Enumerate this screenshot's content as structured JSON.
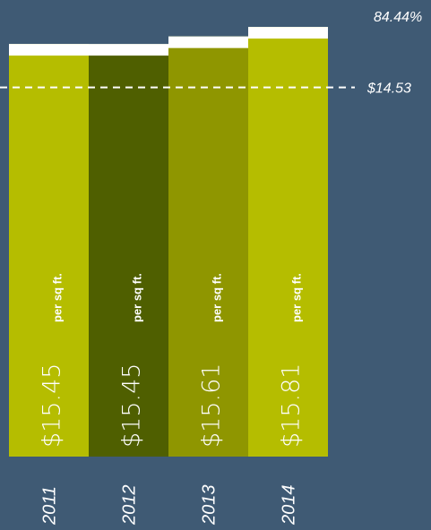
{
  "chart_data": {
    "type": "bar",
    "categories": [
      "2011",
      "2012",
      "2013",
      "2014"
    ],
    "values": [
      15.45,
      15.45,
      15.61,
      15.81
    ],
    "value_labels": [
      "$15.45",
      "$15.45",
      "$15.61",
      "$15.81"
    ],
    "unit_label": "per sq ft.",
    "colors": [
      "#b5bd00",
      "#4f5f00",
      "#8f9600",
      "#b5bd00"
    ],
    "ylim": [
      6.72,
      16.38
    ],
    "reference_line": {
      "value": 14.53,
      "label": "$14.53"
    },
    "annotation": "84.44%"
  }
}
